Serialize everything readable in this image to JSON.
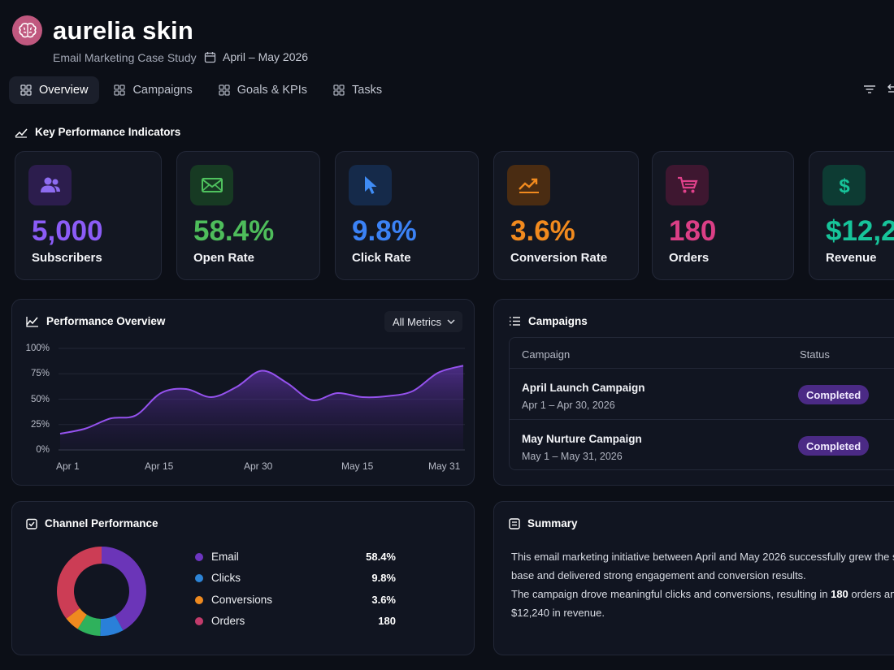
{
  "app": {
    "brand": "aurelia skin",
    "subtitle": "Email Marketing Case Study",
    "date_range": "April – May 2026"
  },
  "tabs": [
    {
      "label": "Overview",
      "active": true
    },
    {
      "label": "Campaigns",
      "active": false
    },
    {
      "label": "Goals & KPIs",
      "active": false
    },
    {
      "label": "Tasks",
      "active": false
    }
  ],
  "kpi_section": {
    "title": "Key Performance Indicators"
  },
  "kpis": [
    {
      "value": "5,000",
      "label": "Subscribers",
      "color": "#8b5cf6",
      "icon": "users-icon"
    },
    {
      "value": "58.4%",
      "label": "Open Rate",
      "color": "#4ebd5b",
      "icon": "mail-icon"
    },
    {
      "value": "9.8%",
      "label": "Click Rate",
      "color": "#3b82f6",
      "icon": "cursor-icon"
    },
    {
      "value": "3.6%",
      "label": "Conversion Rate",
      "color": "#f18a1e",
      "icon": "trending-up-icon"
    },
    {
      "value": "180",
      "label": "Orders",
      "color": "#db3f86",
      "icon": "cart-icon"
    },
    {
      "value": "$12,2",
      "label": "Revenue",
      "color": "#17c49a",
      "icon": "dollar-icon"
    }
  ],
  "performance": {
    "title": "Performance Overview",
    "filter": "All Metrics"
  },
  "chart_data": {
    "type": "area",
    "title": "Performance Overview",
    "xlabel": "",
    "ylabel": "",
    "ylim": [
      0,
      100
    ],
    "y_ticks": [
      "100%",
      "75%",
      "50%",
      "25%",
      "0%"
    ],
    "x_ticks": [
      "Apr 1",
      "Apr 15",
      "Apr 30",
      "May 15",
      "May 31"
    ],
    "x": [
      "Apr 1",
      "Apr 4",
      "Apr 8",
      "Apr 12",
      "Apr 15",
      "Apr 19",
      "Apr 23",
      "Apr 26",
      "Apr 30",
      "May 4",
      "May 8",
      "May 12",
      "May 16",
      "May 20",
      "May 24",
      "May 27",
      "May 31"
    ],
    "values": [
      16,
      21,
      31,
      34,
      56,
      60,
      52,
      62,
      78,
      66,
      49,
      56,
      52,
      53,
      58,
      76,
      83
    ],
    "color": "#9552ee"
  },
  "campaigns": {
    "title": "Campaigns",
    "col_campaign": "Campaign",
    "col_status": "Status",
    "rows": [
      {
        "name": "April Launch Campaign",
        "dates": "Apr 1 – Apr 30, 2026",
        "status": "Completed"
      },
      {
        "name": "May Nurture Campaign",
        "dates": "May 1 – May 31, 2026",
        "status": "Completed"
      }
    ]
  },
  "channel": {
    "title": "Channel Performance",
    "items": [
      {
        "name": "Email",
        "value": "58.4%",
        "color": "#6d35c0"
      },
      {
        "name": "Clicks",
        "value": "9.8%",
        "color": "#2d84d6"
      },
      {
        "name": "Conversions",
        "value": "3.6%",
        "color": "#ef8a1f"
      },
      {
        "name": "Orders",
        "value": "180",
        "color": "#c23b6b"
      }
    ]
  },
  "donut": {
    "segments": [
      {
        "name": "Email",
        "fraction": 0.42,
        "color": "#6b35b8"
      },
      {
        "name": "Clicks",
        "fraction": 0.085,
        "color": "#2a80d9"
      },
      {
        "name": "Greens",
        "fraction": 0.085,
        "color": "#2fb15c"
      },
      {
        "name": "Conversions",
        "fraction": 0.055,
        "color": "#ef8a1f"
      },
      {
        "name": "Orders",
        "fraction": 0.355,
        "color": "#cc3d55"
      }
    ]
  },
  "summary": {
    "title": "Summary",
    "line1": "This email marketing initiative between April and May 2026 successfully grew the subs",
    "line2": "base and delivered strong engagement and conversion results.",
    "line3_pre": "The campaign drove meaningful clicks and conversions, resulting in ",
    "line3_bold": "180",
    "line3_post": " orders and",
    "line4": "$12,240 in revenue."
  }
}
